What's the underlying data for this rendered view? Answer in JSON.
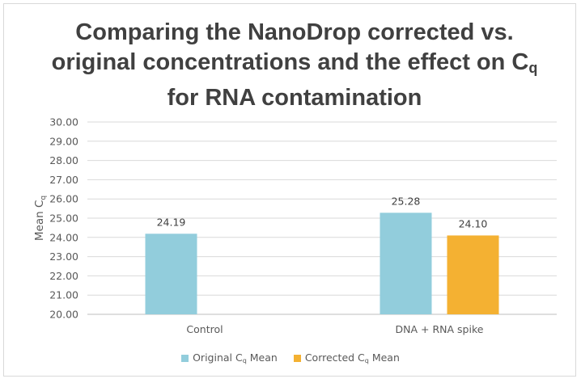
{
  "chart_data": {
    "type": "bar",
    "title_main": "Comparing the NanoDrop corrected vs. original concentrations and the effect on C",
    "title_subscript": "q",
    "title_tail": " for RNA contamination",
    "ylabel_main": "Mean C",
    "ylabel_subscript": "q",
    "xlabel": "",
    "categories": [
      "Control",
      "DNA + RNA spike"
    ],
    "series": [
      {
        "name_main": "Original C",
        "name_subscript": "q",
        "name_tail": " Mean",
        "color": "#92cddc",
        "values": [
          24.19,
          25.28
        ],
        "labels": [
          "24.19",
          "25.28"
        ]
      },
      {
        "name_main": "Corrected C",
        "name_subscript": "q",
        "name_tail": " Mean",
        "color": "#f4b132",
        "values": [
          null,
          24.1
        ],
        "labels": [
          "",
          "24.10"
        ]
      }
    ],
    "ylim": [
      20,
      30
    ],
    "ytick_step": 1,
    "ytick_labels": [
      "20.00",
      "21.00",
      "22.00",
      "23.00",
      "24.00",
      "25.00",
      "26.00",
      "27.00",
      "28.00",
      "29.00",
      "30.00"
    ],
    "grid": true,
    "legend_position": "bottom"
  }
}
